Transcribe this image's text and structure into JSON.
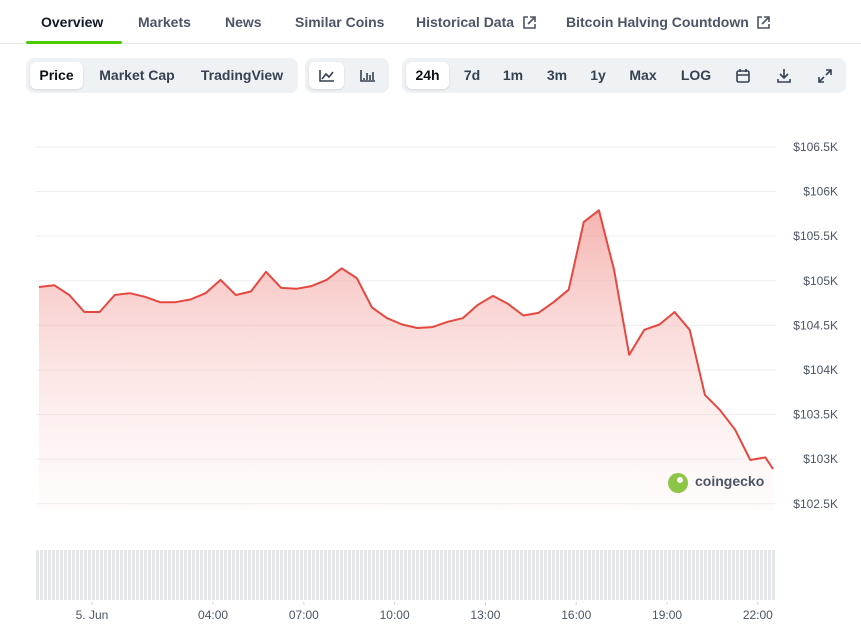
{
  "tabs": [
    "Overview",
    "Markets",
    "News",
    "Similar Coins",
    "Historical Data",
    "Bitcoin Halving Countdown"
  ],
  "toolbar": {
    "modes": [
      "Price",
      "Market Cap",
      "TradingView"
    ],
    "ranges": [
      "24h",
      "7d",
      "1m",
      "3m",
      "1y",
      "Max",
      "LOG"
    ]
  },
  "watermark": "coingecko",
  "chart_data": {
    "type": "area",
    "color": "#e5483f",
    "x": [
      -1.75,
      -1.25,
      -0.75,
      -0.25,
      0.25,
      0.75,
      1.25,
      1.75,
      2.25,
      2.75,
      3.25,
      3.75,
      4.25,
      4.75,
      5.25,
      5.75,
      6.25,
      6.75,
      7.25,
      7.75,
      8.25,
      8.75,
      9.25,
      9.75,
      10.25,
      10.75,
      11.25,
      11.75,
      12.25,
      12.75,
      13.25,
      13.75,
      14.25,
      14.75,
      15.25,
      15.75,
      16.25,
      16.75,
      17.25,
      17.75,
      18.25,
      18.75,
      19.25,
      19.75,
      20.25,
      20.75,
      21.25,
      21.75,
      22.25,
      22.5
    ],
    "values": [
      104930,
      104950,
      104840,
      104650,
      104650,
      104840,
      104860,
      104820,
      104760,
      104760,
      104790,
      104860,
      105010,
      104840,
      104880,
      105100,
      104920,
      104910,
      104940,
      105010,
      105140,
      105030,
      104700,
      104580,
      104510,
      104470,
      104480,
      104540,
      104580,
      104730,
      104830,
      104740,
      104610,
      104640,
      104760,
      104900,
      105660,
      105790,
      105120,
      104170,
      104450,
      104510,
      104650,
      104450,
      103720,
      103550,
      103330,
      102990,
      103020,
      102890
    ],
    "xlim": [
      -1.85,
      22.6
    ],
    "xticks": [
      {
        "value": 0,
        "label": "5. Jun"
      },
      {
        "value": 4,
        "label": "04:00"
      },
      {
        "value": 7,
        "label": "07:00"
      },
      {
        "value": 10,
        "label": "10:00"
      },
      {
        "value": 13,
        "label": "13:00"
      },
      {
        "value": 16,
        "label": "16:00"
      },
      {
        "value": 19,
        "label": "19:00"
      },
      {
        "value": 22,
        "label": "22:00"
      }
    ],
    "ylim": [
      102430,
      106690
    ],
    "yticks": [
      {
        "value": 102500,
        "label": "$102.5K"
      },
      {
        "value": 103000,
        "label": "$103K"
      },
      {
        "value": 103500,
        "label": "$103.5K"
      },
      {
        "value": 104000,
        "label": "$104K"
      },
      {
        "value": 104500,
        "label": "$104.5K"
      },
      {
        "value": 105000,
        "label": "$105K"
      },
      {
        "value": 105500,
        "label": "$105.5K"
      },
      {
        "value": 106000,
        "label": "$106K"
      },
      {
        "value": 106500,
        "label": "$106.5K"
      }
    ],
    "grid": true
  }
}
